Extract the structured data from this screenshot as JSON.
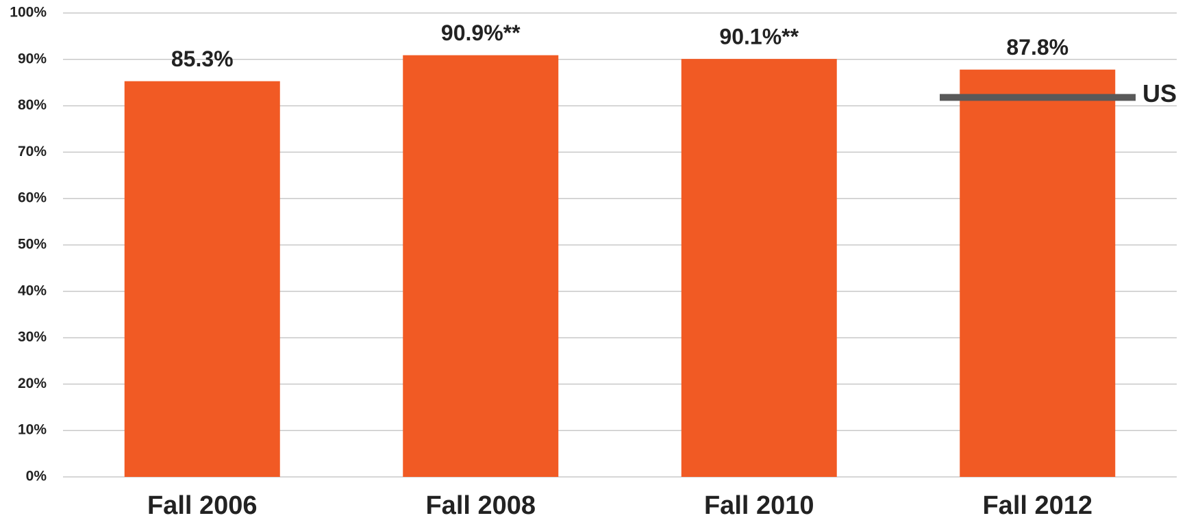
{
  "chart_data": {
    "type": "bar",
    "categories": [
      "Fall 2006",
      "Fall 2008",
      "Fall 2010",
      "Fall 2012"
    ],
    "values": [
      85.3,
      90.9,
      90.1,
      87.8
    ],
    "value_labels": [
      "85.3%",
      "90.9%**",
      "90.1%**",
      "87.8%"
    ],
    "color": "#f15a24",
    "ylim": [
      0,
      100
    ],
    "yticks": [
      {
        "value": 0,
        "label": "0%"
      },
      {
        "value": 10,
        "label": "10%"
      },
      {
        "value": 20,
        "label": "20%"
      },
      {
        "value": 30,
        "label": "30%"
      },
      {
        "value": 40,
        "label": "40%"
      },
      {
        "value": 50,
        "label": "50%"
      },
      {
        "value": 60,
        "label": "60%"
      },
      {
        "value": 70,
        "label": "70%"
      },
      {
        "value": 80,
        "label": "80%"
      },
      {
        "value": 90,
        "label": "90%"
      },
      {
        "value": 100,
        "label": "100%"
      }
    ],
    "grid": true,
    "reference": {
      "label": "US",
      "value": 81.8,
      "color": "#595959"
    }
  }
}
